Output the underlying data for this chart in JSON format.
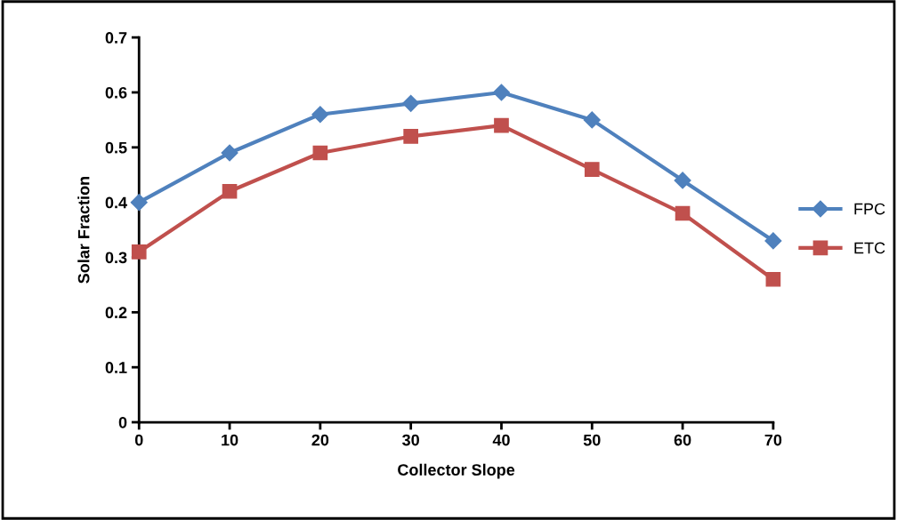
{
  "chart_data": {
    "type": "line",
    "xlabel": "Collector Slope",
    "ylabel": "Solar Fraction",
    "x": [
      0,
      10,
      20,
      30,
      40,
      50,
      60,
      70
    ],
    "series": [
      {
        "name": "FPC",
        "color": "#4f81bd",
        "marker": "diamond",
        "values": [
          0.4,
          0.49,
          0.56,
          0.58,
          0.6,
          0.55,
          0.44,
          0.33
        ]
      },
      {
        "name": "ETC",
        "color": "#c0504d",
        "marker": "square",
        "values": [
          0.31,
          0.42,
          0.49,
          0.52,
          0.54,
          0.46,
          0.38,
          0.26
        ]
      }
    ],
    "xlim": [
      0,
      70
    ],
    "xticks": [
      0,
      10,
      20,
      30,
      40,
      50,
      60,
      70
    ],
    "ylim": [
      0,
      0.7
    ],
    "yticks": [
      {
        "value": 0,
        "label": "0"
      },
      0.1,
      0.2,
      0.3,
      0.4,
      0.5,
      0.6,
      0.7
    ],
    "grid": false,
    "legend": "right",
    "line_style": "solid"
  }
}
